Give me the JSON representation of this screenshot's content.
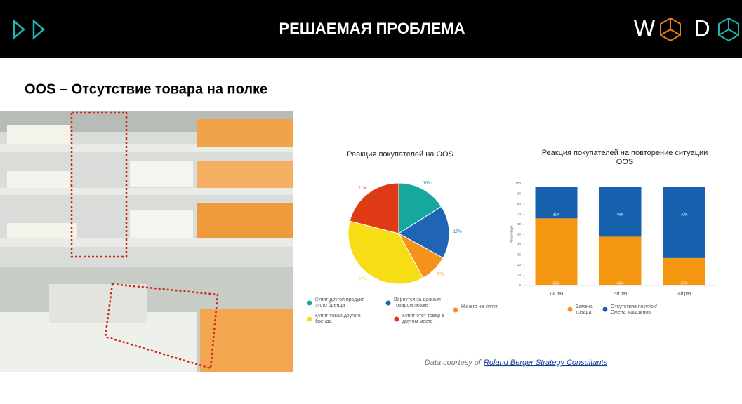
{
  "header": {
    "title": "РЕШАЕМАЯ ПРОБЛЕМА",
    "logo_left": "W",
    "logo_right": "D"
  },
  "heading": "OOS – Отсутствие товара на полке",
  "source": {
    "prefix": "Data courtesy of",
    "link": "Roland Berger Strategy Consultants"
  },
  "chart_data": [
    {
      "type": "pie",
      "title": "Реакция покупателей на OOS",
      "categories": [
        "Купят другой продукт этого бренда",
        "Вернутся за данным товаром позже",
        "Ничего не купят",
        "Купят товар другого бренда",
        "Купят этот товар в другом месте"
      ],
      "values": [
        16,
        17,
        9,
        37,
        21
      ],
      "value_labels": [
        "16%",
        "17%",
        "9%",
        "37%",
        "21%"
      ],
      "colors": [
        "#16a89c",
        "#1f64b5",
        "#f4921c",
        "#f7dd16",
        "#de3a16"
      ]
    },
    {
      "type": "stacked-bar",
      "title": "Реакция покупателей на повторение ситуации OOS",
      "ylabel": "Percentage",
      "categories": [
        "1-й раз",
        "2-й раз",
        "3-й раз"
      ],
      "series": [
        {
          "name": "Замена товара",
          "color": "#f4960f",
          "values": [
            66,
            48,
            27
          ],
          "value_labels": [
            "66%",
            "48%",
            "27%"
          ]
        },
        {
          "name": "Отсутствие покупок/ Смена магазинов",
          "color": "#1760ad",
          "values": [
            31,
            49,
            70
          ],
          "value_labels": [
            "31%",
            "49%",
            "70%"
          ]
        }
      ],
      "ylim": [
        0,
        100
      ],
      "yticks": [
        0,
        10,
        20,
        30,
        40,
        50,
        60,
        70,
        80,
        90,
        100
      ]
    }
  ]
}
